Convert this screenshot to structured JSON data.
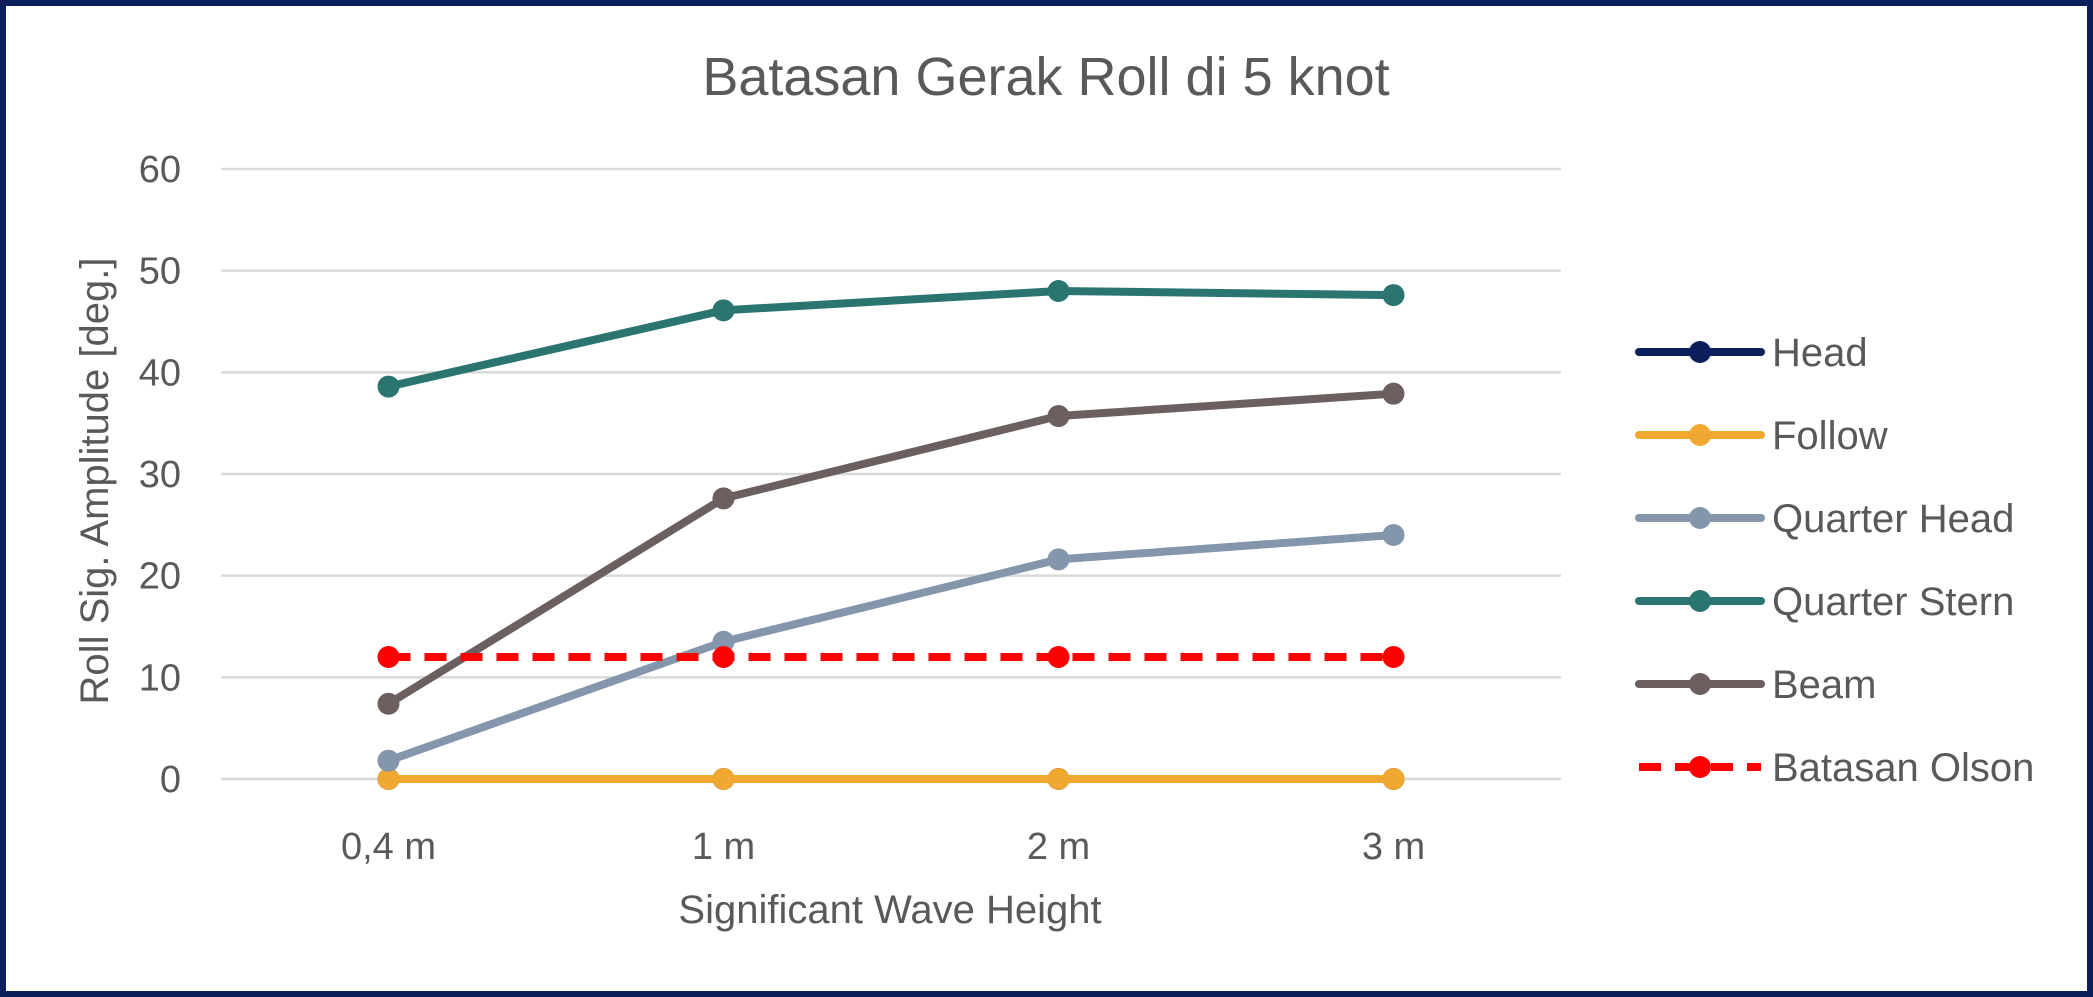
{
  "chart_data": {
    "type": "line",
    "title": "Batasan Gerak Roll di 5 knot",
    "xlabel": "Significant Wave Height",
    "ylabel": "Roll Sig. Amplitude [deg.]",
    "categories": [
      "0,4 m",
      "1 m",
      "2 m",
      "3 m"
    ],
    "ylim": [
      0,
      60
    ],
    "yticks": [
      0,
      10,
      20,
      30,
      40,
      50,
      60
    ],
    "grid": true,
    "legend_position": "right",
    "series": [
      {
        "name": "Head",
        "color": "#0b1f5c",
        "dashed": false,
        "values": [
          0,
          0,
          0,
          0
        ]
      },
      {
        "name": "Follow",
        "color": "#f0a830",
        "dashed": false,
        "values": [
          0,
          0,
          0,
          0
        ]
      },
      {
        "name": "Quarter Head",
        "color": "#8496ab",
        "dashed": false,
        "values": [
          1.8,
          13.5,
          21.6,
          24.0
        ]
      },
      {
        "name": "Quarter Stern",
        "color": "#2b7570",
        "dashed": false,
        "values": [
          38.6,
          46.1,
          48.0,
          47.6
        ]
      },
      {
        "name": "Beam",
        "color": "#6b5f5f",
        "dashed": false,
        "values": [
          7.4,
          27.6,
          35.7,
          37.9
        ]
      },
      {
        "name": "Batasan Olson",
        "color": "#ff0000",
        "dashed": true,
        "values": [
          12,
          12,
          12,
          12
        ]
      }
    ]
  }
}
